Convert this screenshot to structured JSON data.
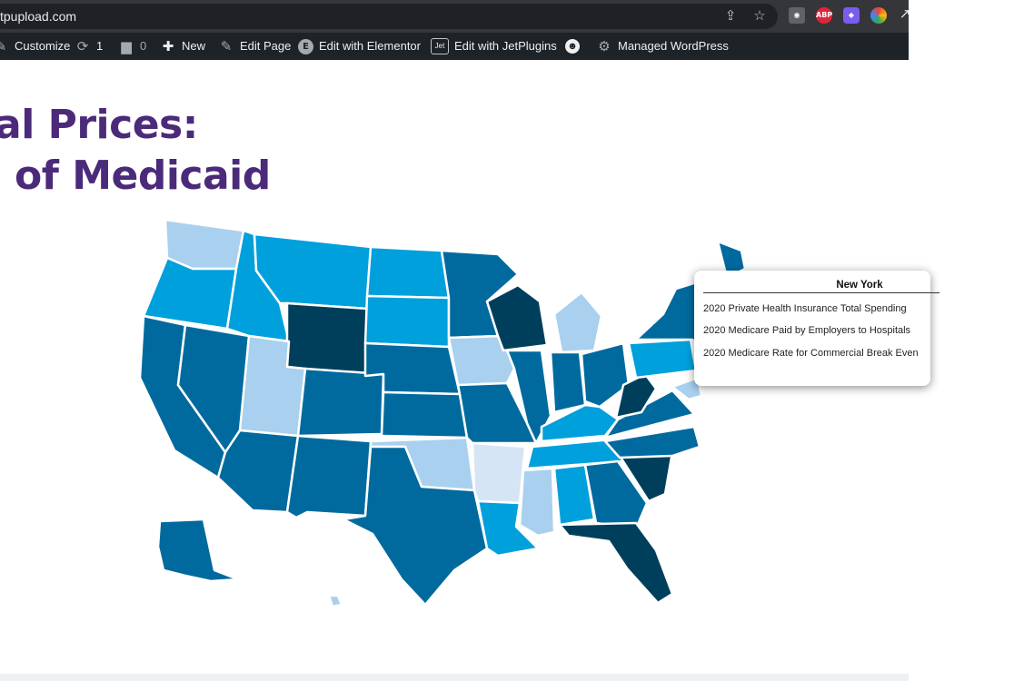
{
  "browser": {
    "url": "tpupload.com",
    "icons": [
      "share-icon",
      "bookmark-star-icon",
      "camera-icon",
      "adblock-icon",
      "extension-icon",
      "color-wheel-icon",
      "link-icon"
    ],
    "adblock_label": "ABP"
  },
  "admin_bar": {
    "customize": "Customize",
    "updates_count": "1",
    "comments_count": "0",
    "new": "New",
    "edit_page": "Edit Page",
    "edit_elementor": "Edit with Elementor",
    "edit_jetplugins": "Edit with JetPlugins",
    "jet_badge": "Jet",
    "managed_wp": "Managed WordPress"
  },
  "page": {
    "title_line1": "al Prices:",
    "title_line2": "of Medicaid"
  },
  "map": {
    "colors": {
      "lightest": "#d5e5f5",
      "light": "#a9d0ee",
      "mid": "#00a0dc",
      "dark": "#006a9e",
      "darkest": "#003f5c"
    }
  },
  "tooltip": {
    "state": "New York",
    "rows": [
      "2020 Private Health Insurance Total Spending",
      "2020 Medicare Paid by Employers to Hospitals",
      "2020 Medicare Rate for Commercial Break Even"
    ]
  }
}
